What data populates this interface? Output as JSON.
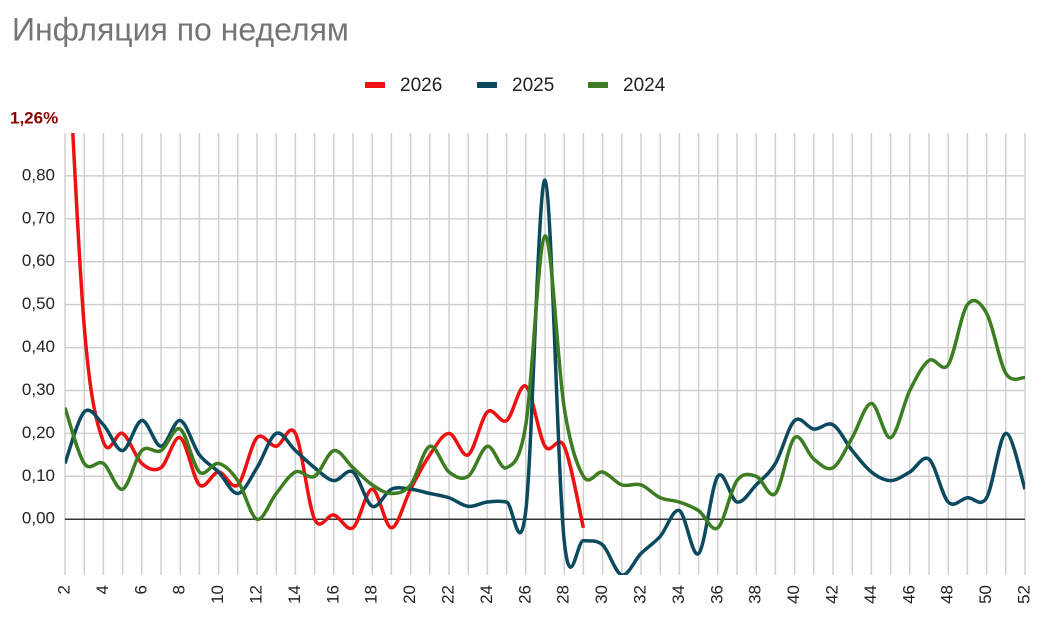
{
  "chart_data": {
    "type": "line",
    "title": "Инфляция по неделям",
    "x": [
      2,
      3,
      4,
      5,
      6,
      7,
      8,
      9,
      10,
      11,
      12,
      13,
      14,
      15,
      16,
      17,
      18,
      19,
      20,
      21,
      22,
      23,
      24,
      25,
      26,
      27,
      28,
      29,
      30,
      31,
      32,
      33,
      34,
      35,
      36,
      37,
      38,
      39,
      40,
      41,
      42,
      43,
      44,
      45,
      46,
      47,
      48,
      49,
      50,
      51,
      52
    ],
    "series": [
      {
        "name": "2026",
        "color": "#ee1111",
        "values": [
          1.26,
          0.45,
          0.18,
          0.2,
          0.13,
          0.12,
          0.19,
          0.08,
          0.11,
          0.08,
          0.19,
          0.17,
          0.2,
          0.0,
          0.01,
          -0.02,
          0.07,
          -0.02,
          0.07,
          0.15,
          0.2,
          0.15,
          0.25,
          0.23,
          0.31,
          0.17,
          0.17,
          -0.02,
          null,
          null,
          null,
          null,
          null,
          null,
          null,
          null,
          null,
          null,
          null,
          null,
          null,
          null,
          null,
          null,
          null,
          null,
          null,
          null,
          null,
          null,
          null
        ],
        "value_labels": [
          "1,26%",
          null,
          null,
          null,
          null,
          null,
          null,
          null,
          null,
          null,
          null,
          null,
          null,
          null,
          null,
          null,
          null,
          null,
          null,
          null,
          null,
          null,
          null,
          null,
          null,
          null,
          null,
          null,
          null,
          null,
          null,
          null,
          null,
          null,
          null,
          null,
          null,
          null,
          null,
          null,
          null,
          null,
          null,
          null,
          null,
          null,
          null,
          null,
          null,
          null,
          null
        ]
      },
      {
        "name": "2025",
        "color": "#0b4a5e",
        "values": [
          0.13,
          0.25,
          0.22,
          0.16,
          0.23,
          0.17,
          0.23,
          0.15,
          0.11,
          0.06,
          0.12,
          0.2,
          0.16,
          0.12,
          0.09,
          0.11,
          0.03,
          0.07,
          0.07,
          0.06,
          0.05,
          0.03,
          0.04,
          0.04,
          0.02,
          0.79,
          -0.05,
          -0.05,
          -0.06,
          -0.13,
          -0.08,
          -0.04,
          0.02,
          -0.08,
          0.1,
          0.04,
          0.08,
          0.13,
          0.23,
          0.21,
          0.22,
          0.16,
          0.11,
          0.09,
          0.11,
          0.14,
          0.04,
          0.05,
          0.05,
          0.2,
          0.07
        ]
      },
      {
        "name": "2024",
        "color": "#3d7d22",
        "values": [
          0.26,
          0.13,
          0.13,
          0.07,
          0.16,
          0.16,
          0.21,
          0.11,
          0.13,
          0.09,
          0.0,
          0.06,
          0.11,
          0.1,
          0.16,
          0.12,
          0.08,
          0.06,
          0.08,
          0.17,
          0.11,
          0.1,
          0.17,
          0.12,
          0.22,
          0.66,
          0.26,
          0.1,
          0.11,
          0.08,
          0.08,
          0.05,
          0.04,
          0.02,
          -0.02,
          0.09,
          0.1,
          0.06,
          0.19,
          0.14,
          0.12,
          0.19,
          0.27,
          0.19,
          0.3,
          0.37,
          0.36,
          0.5,
          0.48,
          0.34,
          0.33
        ]
      }
    ],
    "xlim": [
      2,
      52
    ],
    "xticks": [
      2,
      4,
      6,
      8,
      10,
      12,
      14,
      16,
      18,
      20,
      22,
      24,
      26,
      28,
      30,
      32,
      34,
      36,
      38,
      40,
      42,
      44,
      46,
      48,
      50,
      52
    ],
    "ylim": [
      -0.13,
      0.9
    ],
    "yticks": [
      {
        "value": 0,
        "label": "0,00"
      },
      {
        "value": 0.1,
        "label": "0,10"
      },
      {
        "value": 0.2,
        "label": "0,20"
      },
      {
        "value": 0.3,
        "label": "0,30"
      },
      {
        "value": 0.4,
        "label": "0,40"
      },
      {
        "value": 0.5,
        "label": "0,50"
      },
      {
        "value": 0.6,
        "label": "0,60"
      },
      {
        "value": 0.7,
        "label": "0,70"
      },
      {
        "value": 0.8,
        "label": "0,80"
      }
    ],
    "grid": true,
    "legend": "top"
  }
}
